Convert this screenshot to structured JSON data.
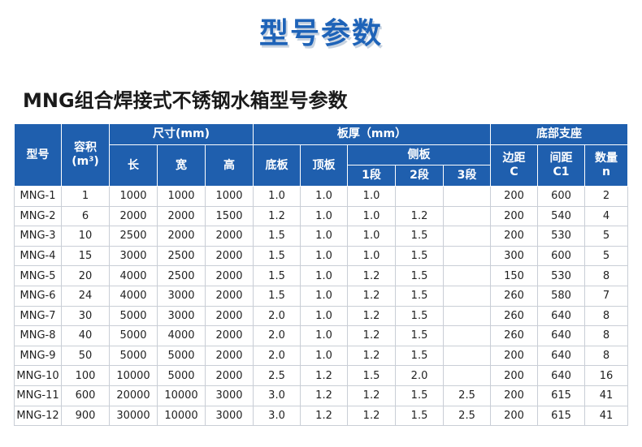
{
  "header": {
    "title": "型号参数",
    "subtitle": "MNG组合焊接式不锈钢水箱型号参数"
  },
  "table": {
    "head": {
      "model": "型号",
      "volume": "容积",
      "volume_unit": "(m³)",
      "size": "尺寸(mm)",
      "length": "长",
      "width": "宽",
      "height": "高",
      "thickness": "板厚（mm）",
      "bottom": "底板",
      "top": "顶板",
      "side": "侧板",
      "seg1": "1段",
      "seg2": "2段",
      "seg3": "3段",
      "support": "底部支座",
      "margin": "边距",
      "margin_sym": "C",
      "spacing": "间距",
      "spacing_sym": "C1",
      "count": "数量",
      "count_sym": "n"
    },
    "rows": [
      [
        "MNG-1",
        "1",
        "1000",
        "1000",
        "1000",
        "1.0",
        "1.0",
        "1.0",
        null,
        null,
        "200",
        "600",
        "2"
      ],
      [
        "MNG-2",
        "6",
        "2000",
        "2000",
        "1500",
        "1.2",
        "1.0",
        "1.0",
        "1.2",
        null,
        "200",
        "540",
        "4"
      ],
      [
        "MNG-3",
        "10",
        "2500",
        "2000",
        "2000",
        "1.5",
        "1.0",
        "1.0",
        "1.5",
        null,
        "200",
        "530",
        "5"
      ],
      [
        "MNG-4",
        "15",
        "3000",
        "2500",
        "2000",
        "1.5",
        "1.0",
        "1.0",
        "1.5",
        null,
        "300",
        "600",
        "5"
      ],
      [
        "MNG-5",
        "20",
        "4000",
        "2500",
        "2000",
        "1.5",
        "1.0",
        "1.2",
        "1.5",
        null,
        "150",
        "530",
        "8"
      ],
      [
        "MNG-6",
        "24",
        "4000",
        "3000",
        "2000",
        "1.5",
        "1.0",
        "1.2",
        "1.5",
        null,
        "260",
        "580",
        "7"
      ],
      [
        "MNG-7",
        "30",
        "5000",
        "3000",
        "2000",
        "2.0",
        "1.0",
        "1.2",
        "1.5",
        null,
        "260",
        "640",
        "8"
      ],
      [
        "MNG-8",
        "40",
        "5000",
        "4000",
        "2000",
        "2.0",
        "1.0",
        "1.2",
        "1.5",
        null,
        "260",
        "640",
        "8"
      ],
      [
        "MNG-9",
        "50",
        "5000",
        "5000",
        "2000",
        "2.0",
        "1.0",
        "1.2",
        "1.5",
        null,
        "200",
        "640",
        "8"
      ],
      [
        "MNG-10",
        "100",
        "10000",
        "5000",
        "2000",
        "2.5",
        "1.2",
        "1.5",
        "2.0",
        null,
        "200",
        "640",
        "16"
      ],
      [
        "MNG-11",
        "600",
        "20000",
        "10000",
        "3000",
        "3.0",
        "1.2",
        "1.2",
        "1.5",
        "2.5",
        "200",
        "615",
        "41"
      ],
      [
        "MNG-12",
        "900",
        "30000",
        "10000",
        "3000",
        "3.0",
        "1.2",
        "1.2",
        "1.5",
        "2.5",
        "200",
        "615",
        "41"
      ]
    ]
  }
}
